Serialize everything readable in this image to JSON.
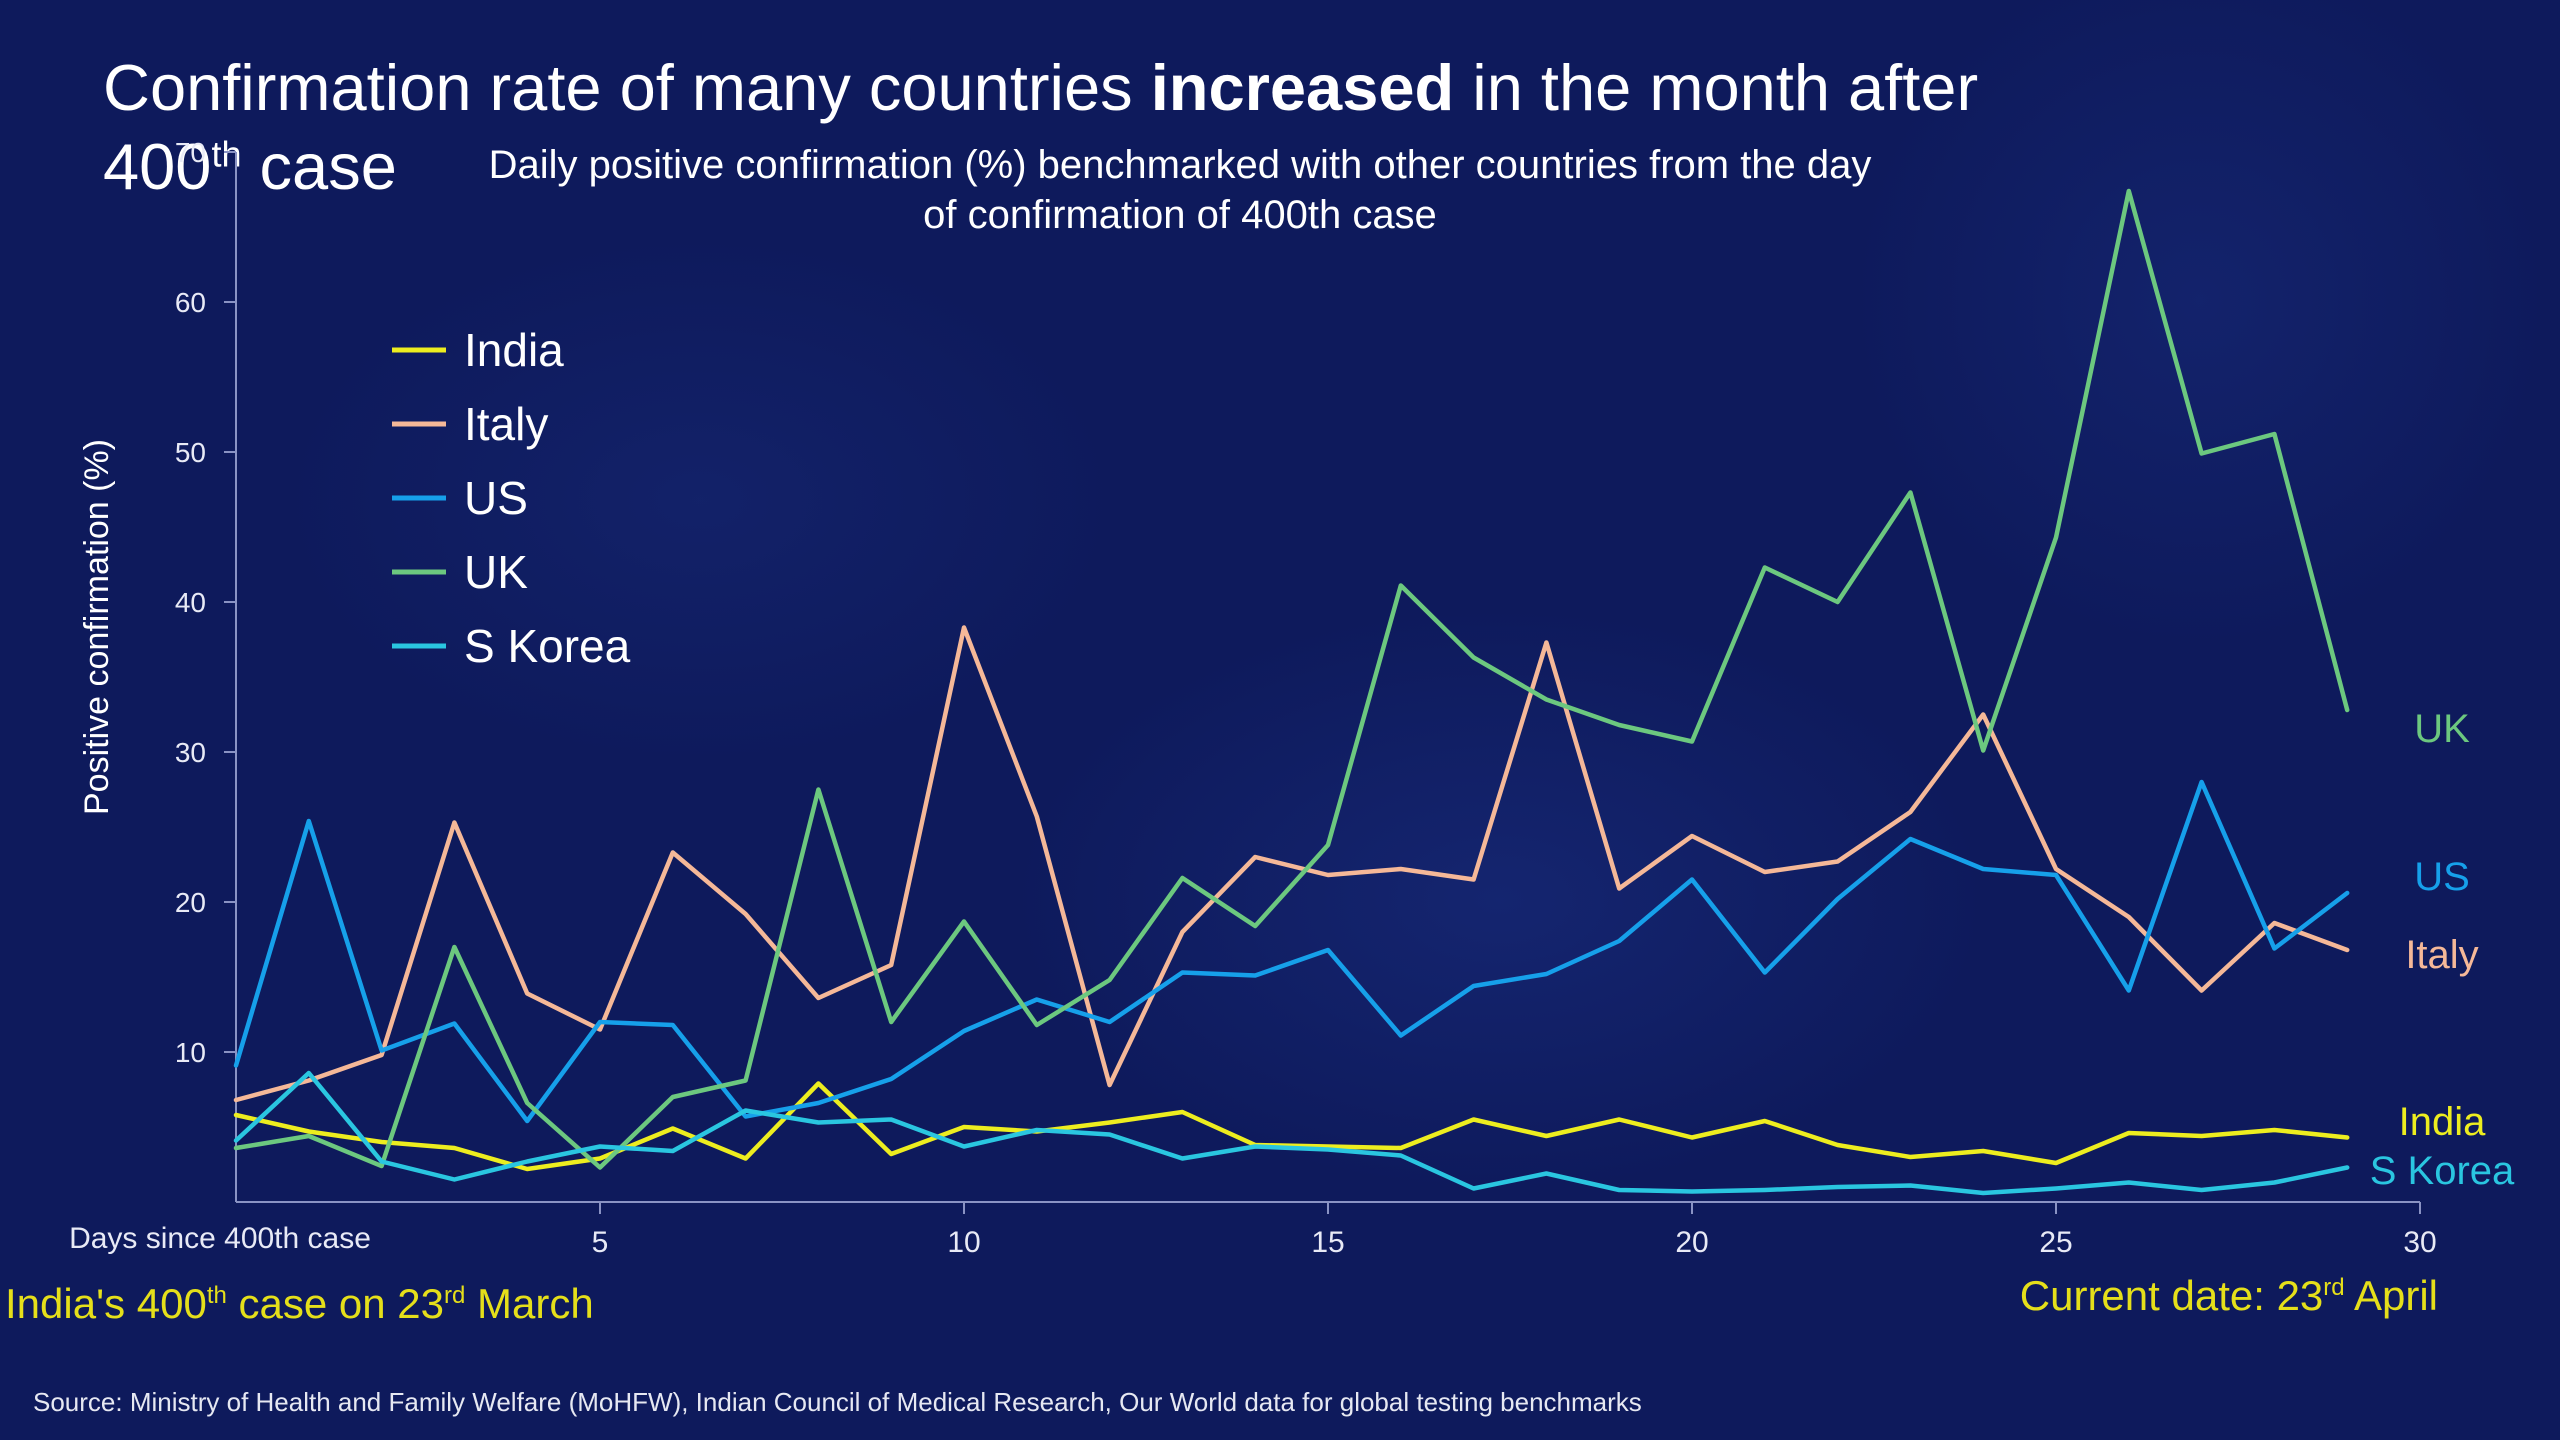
{
  "headline": {
    "part1": "Confirmation rate of many countries ",
    "bold": "increased",
    "part2": " in the month after",
    "line2_num": "400",
    "line2_sup": "th",
    "line2_rest": " case"
  },
  "notes": {
    "start_pre": "India's 400",
    "start_sup1": "th",
    "start_mid": " case on 23",
    "start_sup2": "rd",
    "start_post": " March",
    "current_pre": "Current date: 23",
    "current_sup": "rd",
    "current_post": " April"
  },
  "source": "Source: Ministry of Health and Family Welfare (MoHFW), Indian Council of Medical Research, Our World data for global testing benchmarks",
  "chart_data": {
    "type": "line",
    "title": "Daily positive confirmation (%) benchmarked with other countries from the day of confirmation of 400th case",
    "title_lines": [
      "Daily positive confirmation (%) benchmarked with other countries from the day",
      "of confirmation of 400th case"
    ],
    "xlabel": "Days since 400th case",
    "ylabel": "Positive confirmation (%)",
    "xlim": [
      0,
      30
    ],
    "ylim": [
      0,
      70
    ],
    "xticks": [
      5,
      10,
      15,
      20,
      25,
      30
    ],
    "yticks": [
      10,
      20,
      30,
      40,
      50,
      60,
      70
    ],
    "grid": false,
    "legend_position": "top-left",
    "series": [
      {
        "name": "India",
        "color": "#eded1f",
        "x": [
          0,
          1,
          2,
          3,
          4,
          5,
          6,
          7,
          8,
          9,
          10,
          11,
          12,
          13,
          14,
          15,
          16,
          17,
          18,
          19,
          20,
          21,
          22,
          23,
          24,
          25,
          26,
          27,
          28,
          29
        ],
        "values": [
          5.8,
          4.7,
          4.0,
          3.6,
          2.2,
          2.9,
          4.9,
          2.9,
          7.9,
          3.2,
          5.0,
          4.7,
          5.3,
          6.0,
          3.8,
          3.7,
          3.6,
          5.5,
          4.4,
          5.5,
          4.3,
          5.4,
          3.8,
          3.0,
          3.4,
          2.6,
          4.6,
          4.4,
          4.8,
          4.3
        ]
      },
      {
        "name": "Italy",
        "color": "#f5b898",
        "x": [
          0,
          1,
          2,
          3,
          4,
          5,
          6,
          7,
          8,
          9,
          10,
          11,
          12,
          13,
          14,
          15,
          16,
          17,
          18,
          19,
          20,
          21,
          22,
          23,
          24,
          25,
          26,
          27,
          28,
          29
        ],
        "values": [
          6.8,
          8.1,
          9.8,
          25.3,
          13.9,
          11.5,
          23.3,
          19.2,
          13.6,
          15.8,
          38.3,
          25.7,
          7.8,
          18.0,
          23.0,
          21.8,
          22.2,
          21.5,
          37.3,
          20.9,
          24.4,
          22.0,
          22.7,
          26.0,
          32.5,
          22.2,
          19.0,
          14.1,
          18.6,
          16.8
        ]
      },
      {
        "name": "US",
        "color": "#16a0ea",
        "x": [
          0,
          1,
          2,
          3,
          4,
          5,
          6,
          7,
          8,
          9,
          10,
          11,
          12,
          13,
          14,
          15,
          16,
          17,
          18,
          19,
          20,
          21,
          22,
          23,
          24,
          25,
          26,
          27,
          28,
          29
        ],
        "values": [
          9.1,
          25.4,
          10.1,
          11.9,
          5.4,
          12.0,
          11.8,
          5.7,
          6.6,
          8.2,
          11.4,
          13.5,
          12.0,
          15.3,
          15.1,
          16.8,
          11.1,
          14.4,
          15.2,
          17.4,
          21.5,
          15.3,
          20.2,
          24.2,
          22.2,
          21.8,
          14.1,
          28.0,
          16.9,
          20.6
        ]
      },
      {
        "name": "UK",
        "color": "#6cc87f",
        "x": [
          0,
          1,
          2,
          3,
          4,
          5,
          6,
          7,
          8,
          9,
          10,
          11,
          12,
          13,
          14,
          15,
          16,
          17,
          18,
          19,
          20,
          21,
          22,
          23,
          24,
          25,
          26,
          27,
          28,
          29
        ],
        "values": [
          3.6,
          4.4,
          2.4,
          17.0,
          6.6,
          2.3,
          7.0,
          8.1,
          27.5,
          12.0,
          18.7,
          11.8,
          14.8,
          21.6,
          18.4,
          23.8,
          41.1,
          36.3,
          33.5,
          31.8,
          30.7,
          42.3,
          40.0,
          47.3,
          30.1,
          44.3,
          67.4,
          49.9,
          51.2,
          32.8
        ]
      },
      {
        "name": "S Korea",
        "color": "#2ac6e0",
        "x": [
          0,
          1,
          2,
          3,
          4,
          5,
          6,
          7,
          8,
          9,
          10,
          11,
          12,
          13,
          14,
          15,
          16,
          17,
          18,
          19,
          20,
          21,
          22,
          23,
          24,
          25,
          26,
          27,
          28,
          29
        ],
        "values": [
          4.1,
          8.6,
          2.7,
          1.5,
          2.7,
          3.7,
          3.4,
          6.1,
          5.3,
          5.5,
          3.7,
          4.8,
          4.5,
          2.9,
          3.7,
          3.5,
          3.1,
          0.9,
          1.9,
          0.8,
          0.7,
          0.8,
          1.0,
          1.1,
          0.6,
          0.9,
          1.3,
          0.8,
          1.3,
          2.3
        ]
      }
    ]
  }
}
